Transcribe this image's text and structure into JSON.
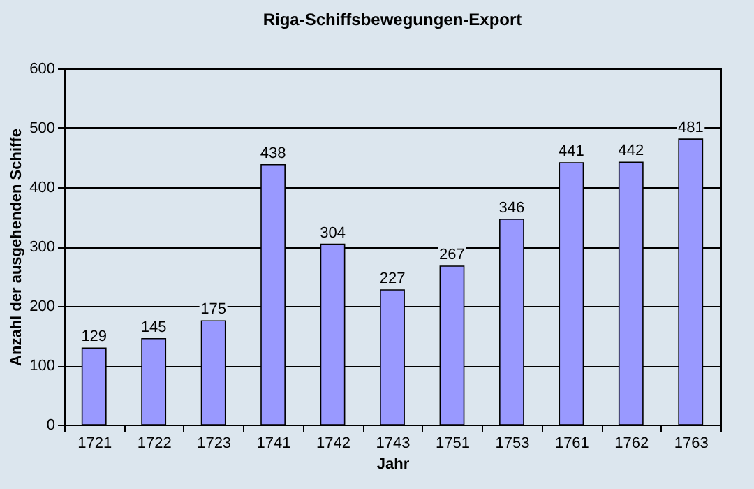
{
  "chart_data": {
    "type": "bar",
    "title": "Riga-Schiffsbewegungen-Export",
    "xlabel": "Jahr",
    "ylabel": "Anzahl der ausgehenden Schiffe",
    "categories": [
      "1721",
      "1722",
      "1723",
      "1741",
      "1742",
      "1743",
      "1751",
      "1753",
      "1761",
      "1762",
      "1763"
    ],
    "values": [
      129,
      145,
      175,
      438,
      304,
      227,
      267,
      346,
      441,
      442,
      481
    ],
    "color": "#9999ff",
    "ylim": [
      0,
      600
    ],
    "yticks": [
      0,
      100,
      200,
      300,
      400,
      500,
      600
    ],
    "grid": "y",
    "data_labels": true
  }
}
